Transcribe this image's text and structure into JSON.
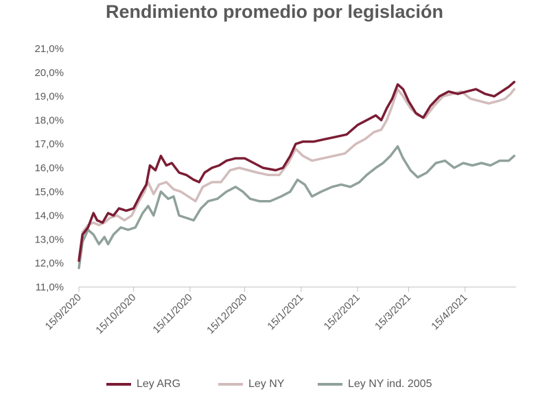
{
  "chart_data": {
    "type": "line",
    "title": "Rendimiento promedio por legislación",
    "xlabel": "",
    "ylabel": "",
    "ylim": [
      11.0,
      21.0
    ],
    "y_ticks": [
      "21,0%",
      "20,0%",
      "19,0%",
      "18,0%",
      "17,0%",
      "16,0%",
      "15,0%",
      "14,0%",
      "13,0%",
      "12,0%",
      "11,0%"
    ],
    "x_ticks": [
      "15/9/2020",
      "15/10/2020",
      "15/11/2020",
      "15/12/2020",
      "15/1/2021",
      "15/2/2021",
      "15/3/2021",
      "15/4/2021"
    ],
    "x_range": [
      "2020-09-15",
      "2021-05-13"
    ],
    "grid": false,
    "legend_position": "bottom",
    "series": [
      {
        "name": "Ley ARG",
        "color": "#7B1C34",
        "points": [
          [
            "2020-09-15",
            12.1
          ],
          [
            "2020-09-17",
            13.2
          ],
          [
            "2020-09-20",
            13.5
          ],
          [
            "2020-09-23",
            14.1
          ],
          [
            "2020-09-25",
            13.8
          ],
          [
            "2020-09-28",
            13.7
          ],
          [
            "2020-10-01",
            14.1
          ],
          [
            "2020-10-04",
            14.0
          ],
          [
            "2020-10-07",
            14.3
          ],
          [
            "2020-10-11",
            14.2
          ],
          [
            "2020-10-15",
            14.3
          ],
          [
            "2020-10-19",
            14.9
          ],
          [
            "2020-10-22",
            15.3
          ],
          [
            "2020-10-24",
            16.1
          ],
          [
            "2020-10-27",
            15.9
          ],
          [
            "2020-10-30",
            16.5
          ],
          [
            "2020-11-02",
            16.1
          ],
          [
            "2020-11-05",
            16.2
          ],
          [
            "2020-11-09",
            15.8
          ],
          [
            "2020-11-13",
            15.7
          ],
          [
            "2020-11-17",
            15.5
          ],
          [
            "2020-11-20",
            15.4
          ],
          [
            "2020-11-23",
            15.8
          ],
          [
            "2020-11-27",
            16.0
          ],
          [
            "2020-12-01",
            16.1
          ],
          [
            "2020-12-05",
            16.3
          ],
          [
            "2020-12-10",
            16.4
          ],
          [
            "2020-12-15",
            16.4
          ],
          [
            "2020-12-20",
            16.2
          ],
          [
            "2020-12-25",
            16.0
          ],
          [
            "2021-01-01",
            15.9
          ],
          [
            "2021-01-05",
            16.0
          ],
          [
            "2021-01-09",
            16.5
          ],
          [
            "2021-01-12",
            17.0
          ],
          [
            "2021-01-16",
            17.1
          ],
          [
            "2021-01-22",
            17.1
          ],
          [
            "2021-01-28",
            17.2
          ],
          [
            "2021-02-03",
            17.3
          ],
          [
            "2021-02-09",
            17.4
          ],
          [
            "2021-02-15",
            17.8
          ],
          [
            "2021-02-20",
            18.0
          ],
          [
            "2021-02-25",
            18.2
          ],
          [
            "2021-02-28",
            18.0
          ],
          [
            "2021-03-03",
            18.5
          ],
          [
            "2021-03-06",
            18.9
          ],
          [
            "2021-03-09",
            19.5
          ],
          [
            "2021-03-12",
            19.3
          ],
          [
            "2021-03-15",
            18.8
          ],
          [
            "2021-03-19",
            18.3
          ],
          [
            "2021-03-23",
            18.1
          ],
          [
            "2021-03-27",
            18.6
          ],
          [
            "2021-04-01",
            19.0
          ],
          [
            "2021-04-06",
            19.2
          ],
          [
            "2021-04-11",
            19.1
          ],
          [
            "2021-04-16",
            19.2
          ],
          [
            "2021-04-21",
            19.3
          ],
          [
            "2021-04-26",
            19.1
          ],
          [
            "2021-05-01",
            19.0
          ],
          [
            "2021-05-05",
            19.2
          ],
          [
            "2021-05-09",
            19.4
          ],
          [
            "2021-05-12",
            19.6
          ]
        ]
      },
      {
        "name": "Ley NY",
        "color": "#D3BCBC",
        "points": [
          [
            "2020-09-15",
            12.2
          ],
          [
            "2020-09-17",
            13.3
          ],
          [
            "2020-09-20",
            13.6
          ],
          [
            "2020-09-23",
            13.7
          ],
          [
            "2020-09-26",
            13.6
          ],
          [
            "2020-09-29",
            13.7
          ],
          [
            "2020-10-02",
            13.9
          ],
          [
            "2020-10-06",
            14.0
          ],
          [
            "2020-10-10",
            13.8
          ],
          [
            "2020-10-14",
            14.0
          ],
          [
            "2020-10-18",
            14.6
          ],
          [
            "2020-10-21",
            15.0
          ],
          [
            "2020-10-23",
            15.4
          ],
          [
            "2020-10-26",
            14.9
          ],
          [
            "2020-10-29",
            15.3
          ],
          [
            "2020-11-02",
            15.4
          ],
          [
            "2020-11-06",
            15.1
          ],
          [
            "2020-11-10",
            15.0
          ],
          [
            "2020-11-14",
            14.8
          ],
          [
            "2020-11-18",
            14.6
          ],
          [
            "2020-11-22",
            15.2
          ],
          [
            "2020-11-27",
            15.4
          ],
          [
            "2020-12-02",
            15.4
          ],
          [
            "2020-12-07",
            15.9
          ],
          [
            "2020-12-12",
            16.0
          ],
          [
            "2020-12-17",
            15.9
          ],
          [
            "2020-12-22",
            15.8
          ],
          [
            "2020-12-28",
            15.7
          ],
          [
            "2021-01-03",
            15.7
          ],
          [
            "2021-01-08",
            16.2
          ],
          [
            "2021-01-12",
            16.8
          ],
          [
            "2021-01-16",
            16.5
          ],
          [
            "2021-01-21",
            16.3
          ],
          [
            "2021-01-27",
            16.4
          ],
          [
            "2021-02-02",
            16.5
          ],
          [
            "2021-02-08",
            16.6
          ],
          [
            "2021-02-14",
            17.0
          ],
          [
            "2021-02-19",
            17.2
          ],
          [
            "2021-02-24",
            17.5
          ],
          [
            "2021-02-28",
            17.6
          ],
          [
            "2021-03-03",
            18.0
          ],
          [
            "2021-03-06",
            18.6
          ],
          [
            "2021-03-09",
            19.3
          ],
          [
            "2021-03-12",
            19.0
          ],
          [
            "2021-03-16",
            18.5
          ],
          [
            "2021-03-20",
            18.2
          ],
          [
            "2021-03-24",
            18.1
          ],
          [
            "2021-03-29",
            18.6
          ],
          [
            "2021-04-03",
            19.0
          ],
          [
            "2021-04-08",
            19.1
          ],
          [
            "2021-04-13",
            19.2
          ],
          [
            "2021-04-18",
            18.9
          ],
          [
            "2021-04-23",
            18.8
          ],
          [
            "2021-04-28",
            18.7
          ],
          [
            "2021-05-03",
            18.8
          ],
          [
            "2021-05-07",
            18.9
          ],
          [
            "2021-05-10",
            19.1
          ],
          [
            "2021-05-12",
            19.3
          ]
        ]
      },
      {
        "name": "Ley NY ind. 2005",
        "color": "#8FA19A",
        "points": [
          [
            "2020-09-15",
            11.8
          ],
          [
            "2020-09-17",
            12.9
          ],
          [
            "2020-09-20",
            13.4
          ],
          [
            "2020-09-23",
            13.2
          ],
          [
            "2020-09-26",
            12.8
          ],
          [
            "2020-09-29",
            13.1
          ],
          [
            "2020-10-01",
            12.8
          ],
          [
            "2020-10-04",
            13.2
          ],
          [
            "2020-10-08",
            13.5
          ],
          [
            "2020-10-12",
            13.4
          ],
          [
            "2020-10-16",
            13.5
          ],
          [
            "2020-10-20",
            14.1
          ],
          [
            "2020-10-23",
            14.4
          ],
          [
            "2020-10-26",
            14.0
          ],
          [
            "2020-10-30",
            15.0
          ],
          [
            "2020-11-03",
            14.7
          ],
          [
            "2020-11-06",
            14.8
          ],
          [
            "2020-11-09",
            14.0
          ],
          [
            "2020-11-13",
            13.9
          ],
          [
            "2020-11-17",
            13.8
          ],
          [
            "2020-11-21",
            14.3
          ],
          [
            "2020-11-25",
            14.6
          ],
          [
            "2020-11-30",
            14.7
          ],
          [
            "2020-12-05",
            15.0
          ],
          [
            "2020-12-10",
            15.2
          ],
          [
            "2020-12-14",
            15.0
          ],
          [
            "2020-12-18",
            14.7
          ],
          [
            "2020-12-23",
            14.6
          ],
          [
            "2020-12-29",
            14.6
          ],
          [
            "2021-01-04",
            14.8
          ],
          [
            "2021-01-09",
            15.0
          ],
          [
            "2021-01-13",
            15.5
          ],
          [
            "2021-01-17",
            15.3
          ],
          [
            "2021-01-21",
            14.8
          ],
          [
            "2021-01-26",
            15.0
          ],
          [
            "2021-02-01",
            15.2
          ],
          [
            "2021-02-06",
            15.3
          ],
          [
            "2021-02-11",
            15.2
          ],
          [
            "2021-02-16",
            15.4
          ],
          [
            "2021-02-20",
            15.7
          ],
          [
            "2021-02-25",
            16.0
          ],
          [
            "2021-03-01",
            16.2
          ],
          [
            "2021-03-05",
            16.5
          ],
          [
            "2021-03-09",
            16.9
          ],
          [
            "2021-03-12",
            16.4
          ],
          [
            "2021-03-16",
            15.9
          ],
          [
            "2021-03-20",
            15.6
          ],
          [
            "2021-03-25",
            15.8
          ],
          [
            "2021-03-30",
            16.2
          ],
          [
            "2021-04-04",
            16.3
          ],
          [
            "2021-04-09",
            16.0
          ],
          [
            "2021-04-14",
            16.2
          ],
          [
            "2021-04-19",
            16.1
          ],
          [
            "2021-04-24",
            16.2
          ],
          [
            "2021-04-29",
            16.1
          ],
          [
            "2021-05-04",
            16.3
          ],
          [
            "2021-05-09",
            16.3
          ],
          [
            "2021-05-12",
            16.5
          ]
        ]
      }
    ]
  }
}
